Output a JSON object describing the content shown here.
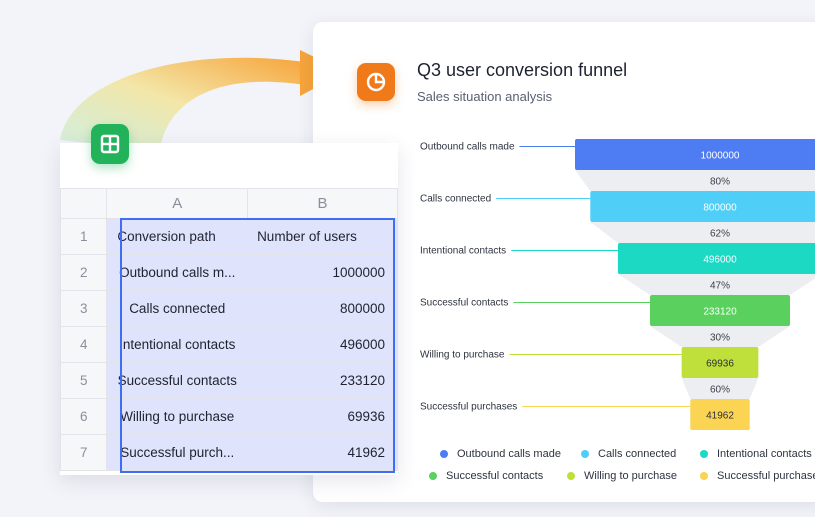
{
  "chart": {
    "title": "Q3 user conversion funnel",
    "subtitle": "Sales situation analysis",
    "icon": "pie-chart-icon",
    "accent": "#f07a1a"
  },
  "chart_data": {
    "type": "funnel",
    "title": "Q3 user conversion funnel",
    "subtitle": "Sales situation analysis",
    "categories": [
      "Outbound calls made",
      "Calls connected",
      "Intentional contacts",
      "Successful contacts",
      "Willing to purchase",
      "Successful purchases"
    ],
    "values": [
      1000000,
      800000,
      496000,
      233120,
      69936,
      41962
    ],
    "value_labels": [
      "1000000",
      "800000",
      "496000",
      "233120",
      "69936",
      "41962"
    ],
    "conversion_rates": [
      "80%",
      "62%",
      "47%",
      "30%",
      "60%"
    ],
    "colors": [
      "#4e7df3",
      "#4fcff7",
      "#1bd9c3",
      "#5ad15e",
      "#bfe03a",
      "#fbd454"
    ],
    "legend": [
      "Outbound calls made",
      "Calls connected",
      "Intentional contacts",
      "Successful contacts",
      "Willing to purchase",
      "Successful purchases"
    ],
    "legend_position": "bottom"
  },
  "sheet": {
    "icon": "spreadsheet-icon",
    "accent": "#22b35a",
    "columns": [
      "A",
      "B"
    ],
    "rows": [
      {
        "num": "1",
        "a": "Conversion path",
        "b": "Number of users"
      },
      {
        "num": "2",
        "a": "Outbound calls m...",
        "b": "1000000"
      },
      {
        "num": "3",
        "a": "Calls connected",
        "b": "800000"
      },
      {
        "num": "4",
        "a": "Intentional contacts",
        "b": "496000"
      },
      {
        "num": "5",
        "a": "Successful contacts",
        "b": "233120"
      },
      {
        "num": "6",
        "a": "Willing to purchase",
        "b": "69936"
      },
      {
        "num": "7",
        "a": "Successful purch...",
        "b": "41962"
      }
    ]
  }
}
